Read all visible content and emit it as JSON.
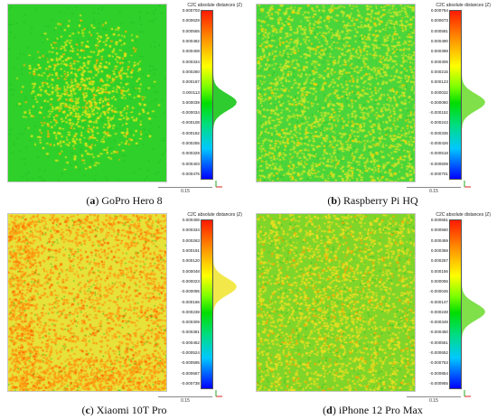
{
  "panels": [
    {
      "id": "a",
      "caption_letter": "(a)",
      "caption_text": "GoPro Hero 8",
      "colorbar_title": "C2C absolute distances (Z)",
      "ticks": [
        "0.000703",
        "0.000629",
        "0.000555",
        "0.000482",
        "0.000408",
        "0.000334",
        "0.000260",
        "0.000187",
        "0.000113",
        "0.000039",
        "-0.000034",
        "-0.000108",
        "-0.000182",
        "-0.000255",
        "-0.000329",
        "-0.000403",
        "-0.000476"
      ],
      "scale_label": "0.15",
      "map_style": "green_center_yellow",
      "colors": {
        "base": "#2fd02a",
        "speck": "#e6e81a",
        "warm": "#ffb000"
      }
    },
    {
      "id": "b",
      "caption_letter": "(b)",
      "caption_text": "Raspberry Pi HQ",
      "colorbar_title": "C2C absolute distances (Z)",
      "ticks": [
        "0.000764",
        "0.000673",
        "0.000581",
        "0.000490",
        "0.000398",
        "0.000306",
        "0.000215",
        "0.000123",
        "0.000032",
        "-0.000060",
        "-0.000152",
        "-0.000243",
        "-0.000335",
        "-0.000426",
        "-0.000518",
        "-0.000609",
        "-0.000701"
      ],
      "scale_label": "0.15",
      "map_style": "green_speckled",
      "colors": {
        "base": "#4ad53a",
        "speck": "#cfe82a",
        "warm": "#ffd000"
      }
    },
    {
      "id": "c",
      "caption_letter": "(c)",
      "caption_text": "Xiaomi 10T Pro",
      "colorbar_title": "C2C absolute distances (Z)",
      "ticks": [
        "0.000406",
        "0.000334",
        "0.000263",
        "0.000191",
        "0.000120",
        "0.000048",
        "-0.000023",
        "-0.000095",
        "-0.000166",
        "-0.000238",
        "-0.000309",
        "-0.000381",
        "-0.000452",
        "-0.000524",
        "-0.000595",
        "-0.000667",
        "-0.000738"
      ],
      "scale_label": "0.15",
      "map_style": "yellow_orange",
      "colors": {
        "base": "#e7e23a",
        "speck": "#ff9a10",
        "warm": "#ff6a00"
      }
    },
    {
      "id": "d",
      "caption_letter": "(d)",
      "caption_text": "iPhone 12 Pro Max",
      "colorbar_title": "C2C absolute distances (Z)",
      "ticks": [
        "0.000661",
        "0.000560",
        "0.000459",
        "0.000358",
        "0.000257",
        "0.000156",
        "0.000055",
        "-0.000046",
        "-0.000147",
        "-0.000248",
        "-0.000349",
        "-0.000450",
        "-0.000551",
        "-0.000652",
        "-0.000753",
        "-0.000854",
        "-0.000955"
      ],
      "scale_label": "0.15",
      "map_style": "green_yellow_mix",
      "colors": {
        "base": "#7fd52a",
        "speck": "#f0e020",
        "warm": "#ffaa00"
      }
    }
  ]
}
